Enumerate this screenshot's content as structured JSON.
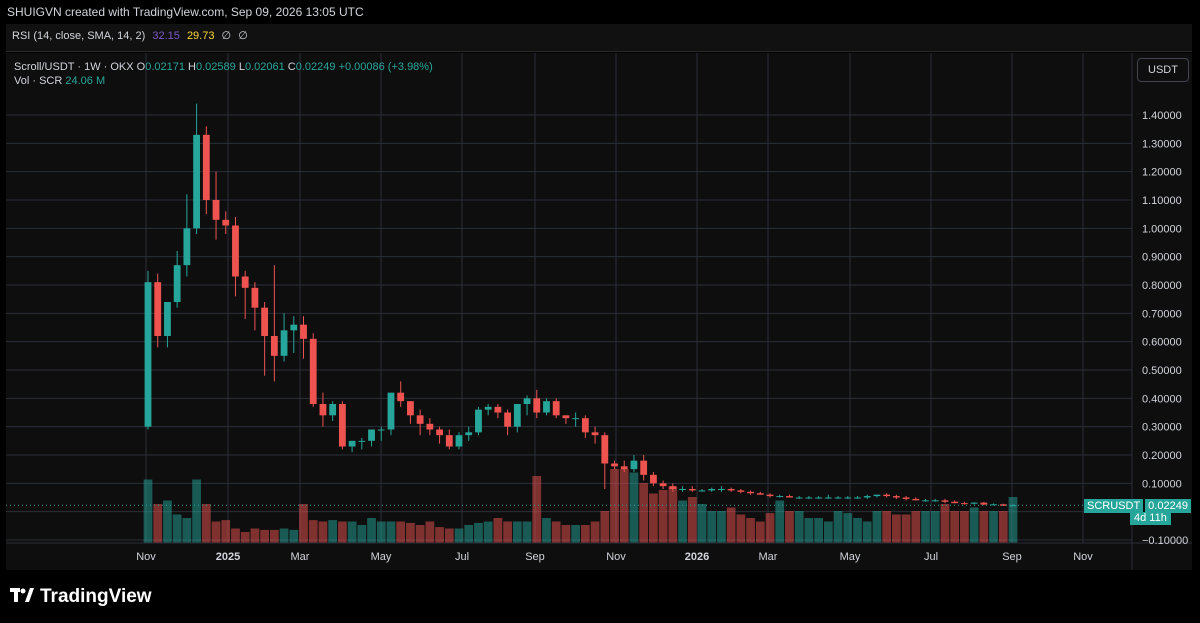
{
  "header": {
    "text": "SHUIGVN created with TradingView.com, Sep 09, 2026 13:05 UTC"
  },
  "rsi": {
    "label": "RSI (14, close, SMA, 14, 2)",
    "value1": "32.15",
    "value2": "29.73",
    "value3": "∅",
    "value4": "∅",
    "colors": {
      "value1": "#7e57c2",
      "value2": "#fdd835"
    }
  },
  "legend": {
    "symbol": "Scroll/USDT · 1W · OKX",
    "open_label": "O",
    "open": "0.02171",
    "high_label": "H",
    "high": "0.02589",
    "low_label": "L",
    "low": "0.02061",
    "close_label": "C",
    "close": "0.02249",
    "change": "+0.00086 (+3.98%)",
    "vol_label": "Vol · SCR",
    "vol_value": "24.06 M"
  },
  "currency_button": "USDT",
  "price_tag": {
    "symbol": "SCRUSDT",
    "value": "0.02249",
    "countdown": "4d 11h"
  },
  "watermark": "TradingView",
  "colors": {
    "up": "#26a69a",
    "down": "#ef5350",
    "background": "#0e0e0e",
    "grid": "#2a2e39"
  },
  "chart_data": {
    "type": "candlestick",
    "y_axis": {
      "range": [
        -0.1,
        1.4
      ],
      "ticks": [
        "1.40000",
        "1.30000",
        "1.20000",
        "1.10000",
        "1.00000",
        "0.90000",
        "0.80000",
        "0.70000",
        "0.60000",
        "0.50000",
        "0.40000",
        "0.30000",
        "0.20000",
        "0.10000",
        "−0.10000"
      ],
      "tick_values": [
        1.4,
        1.3,
        1.2,
        1.1,
        1.0,
        0.9,
        0.8,
        0.7,
        0.6,
        0.5,
        0.4,
        0.3,
        0.2,
        0.1,
        -0.1
      ]
    },
    "x_axis": {
      "tick_labels": [
        "Nov",
        "2025",
        "Mar",
        "May",
        "Jul",
        "Sep",
        "Nov",
        "2026",
        "Mar",
        "May",
        "Jul",
        "Sep",
        "Nov"
      ],
      "tick_bold": [
        false,
        true,
        false,
        false,
        false,
        false,
        false,
        true,
        false,
        false,
        false,
        false,
        false
      ]
    },
    "candles": [
      [
        0.3,
        0.85,
        0.29,
        0.81
      ],
      [
        0.81,
        0.84,
        0.58,
        0.62
      ],
      [
        0.62,
        0.74,
        0.58,
        0.74
      ],
      [
        0.74,
        0.92,
        0.72,
        0.87
      ],
      [
        0.87,
        1.12,
        0.83,
        1.0
      ],
      [
        1.0,
        1.44,
        0.98,
        1.33
      ],
      [
        1.33,
        1.36,
        1.05,
        1.1
      ],
      [
        1.1,
        1.2,
        0.96,
        1.03
      ],
      [
        1.03,
        1.06,
        0.98,
        1.01
      ],
      [
        1.01,
        1.04,
        0.76,
        0.83
      ],
      [
        0.83,
        0.85,
        0.68,
        0.79
      ],
      [
        0.79,
        0.81,
        0.64,
        0.72
      ],
      [
        0.72,
        0.74,
        0.48,
        0.62
      ],
      [
        0.62,
        0.87,
        0.46,
        0.55
      ],
      [
        0.55,
        0.7,
        0.53,
        0.64
      ],
      [
        0.64,
        0.69,
        0.56,
        0.66
      ],
      [
        0.66,
        0.69,
        0.54,
        0.61
      ],
      [
        0.61,
        0.63,
        0.37,
        0.38
      ],
      [
        0.38,
        0.42,
        0.3,
        0.34
      ],
      [
        0.34,
        0.39,
        0.32,
        0.38
      ],
      [
        0.38,
        0.39,
        0.22,
        0.23
      ],
      [
        0.23,
        0.25,
        0.21,
        0.25
      ],
      [
        0.25,
        0.26,
        0.22,
        0.25
      ],
      [
        0.25,
        0.29,
        0.23,
        0.29
      ],
      [
        0.29,
        0.3,
        0.25,
        0.29
      ],
      [
        0.29,
        0.42,
        0.27,
        0.42
      ],
      [
        0.42,
        0.46,
        0.37,
        0.39
      ],
      [
        0.39,
        0.39,
        0.31,
        0.34
      ],
      [
        0.34,
        0.36,
        0.27,
        0.31
      ],
      [
        0.31,
        0.33,
        0.27,
        0.29
      ],
      [
        0.29,
        0.3,
        0.24,
        0.27
      ],
      [
        0.27,
        0.29,
        0.22,
        0.23
      ],
      [
        0.23,
        0.28,
        0.22,
        0.27
      ],
      [
        0.27,
        0.3,
        0.25,
        0.28
      ],
      [
        0.28,
        0.37,
        0.27,
        0.36
      ],
      [
        0.36,
        0.38,
        0.34,
        0.37
      ],
      [
        0.37,
        0.38,
        0.33,
        0.35
      ],
      [
        0.35,
        0.36,
        0.27,
        0.3
      ],
      [
        0.3,
        0.38,
        0.28,
        0.38
      ],
      [
        0.38,
        0.41,
        0.34,
        0.4
      ],
      [
        0.4,
        0.43,
        0.33,
        0.35
      ],
      [
        0.35,
        0.4,
        0.34,
        0.39
      ],
      [
        0.39,
        0.4,
        0.33,
        0.34
      ],
      [
        0.34,
        0.34,
        0.31,
        0.33
      ],
      [
        0.33,
        0.35,
        0.3,
        0.33
      ],
      [
        0.33,
        0.34,
        0.26,
        0.28
      ],
      [
        0.28,
        0.3,
        0.24,
        0.27
      ],
      [
        0.27,
        0.28,
        0.08,
        0.17
      ],
      [
        0.17,
        0.18,
        0.15,
        0.16
      ],
      [
        0.16,
        0.18,
        0.14,
        0.15
      ],
      [
        0.15,
        0.2,
        0.14,
        0.18
      ],
      [
        0.18,
        0.2,
        0.11,
        0.13
      ],
      [
        0.13,
        0.14,
        0.09,
        0.1
      ],
      [
        0.1,
        0.11,
        0.08,
        0.09
      ],
      [
        0.09,
        0.1,
        0.07,
        0.08
      ],
      [
        0.08,
        0.09,
        0.07,
        0.08
      ],
      [
        0.08,
        0.09,
        0.07,
        0.075
      ],
      [
        0.075,
        0.08,
        0.07,
        0.075
      ],
      [
        0.075,
        0.085,
        0.07,
        0.08
      ],
      [
        0.08,
        0.09,
        0.07,
        0.08
      ],
      [
        0.08,
        0.085,
        0.07,
        0.075
      ],
      [
        0.075,
        0.08,
        0.065,
        0.07
      ],
      [
        0.07,
        0.075,
        0.06,
        0.065
      ],
      [
        0.065,
        0.07,
        0.06,
        0.06
      ],
      [
        0.06,
        0.065,
        0.05,
        0.055
      ],
      [
        0.055,
        0.06,
        0.05,
        0.055
      ],
      [
        0.055,
        0.06,
        0.05,
        0.05
      ],
      [
        0.05,
        0.055,
        0.045,
        0.05
      ],
      [
        0.05,
        0.055,
        0.045,
        0.05
      ],
      [
        0.05,
        0.055,
        0.045,
        0.05
      ],
      [
        0.05,
        0.06,
        0.045,
        0.05
      ],
      [
        0.05,
        0.055,
        0.045,
        0.05
      ],
      [
        0.05,
        0.055,
        0.045,
        0.05
      ],
      [
        0.05,
        0.055,
        0.045,
        0.05
      ],
      [
        0.05,
        0.06,
        0.045,
        0.055
      ],
      [
        0.055,
        0.06,
        0.05,
        0.06
      ],
      [
        0.06,
        0.065,
        0.05,
        0.055
      ],
      [
        0.055,
        0.06,
        0.045,
        0.05
      ],
      [
        0.05,
        0.055,
        0.04,
        0.045
      ],
      [
        0.045,
        0.05,
        0.04,
        0.04
      ],
      [
        0.04,
        0.045,
        0.035,
        0.04
      ],
      [
        0.04,
        0.045,
        0.035,
        0.04
      ],
      [
        0.04,
        0.045,
        0.03,
        0.035
      ],
      [
        0.035,
        0.04,
        0.03,
        0.03
      ],
      [
        0.03,
        0.035,
        0.025,
        0.028
      ],
      [
        0.028,
        0.033,
        0.025,
        0.032
      ],
      [
        0.032,
        0.034,
        0.023,
        0.025
      ],
      [
        0.025,
        0.029,
        0.022,
        0.026
      ],
      [
        0.026,
        0.028,
        0.02,
        0.021
      ],
      [
        0.02171,
        0.02589,
        0.02061,
        0.02249
      ]
    ],
    "volume": [
      0.9,
      0.55,
      0.6,
      0.4,
      0.35,
      0.9,
      0.55,
      0.3,
      0.32,
      0.2,
      0.15,
      0.2,
      0.18,
      0.18,
      0.2,
      0.18,
      0.55,
      0.32,
      0.3,
      0.32,
      0.3,
      0.3,
      0.25,
      0.35,
      0.3,
      0.3,
      0.3,
      0.28,
      0.25,
      0.3,
      0.22,
      0.2,
      0.2,
      0.25,
      0.28,
      0.3,
      0.35,
      0.3,
      0.3,
      0.3,
      0.95,
      0.35,
      0.3,
      0.25,
      0.25,
      0.25,
      0.3,
      0.45,
      1.05,
      1.05,
      1.0,
      0.85,
      0.7,
      0.75,
      0.8,
      0.6,
      0.65,
      0.55,
      0.45,
      0.45,
      0.5,
      0.4,
      0.35,
      0.3,
      0.42,
      0.6,
      0.45,
      0.45,
      0.35,
      0.35,
      0.3,
      0.45,
      0.42,
      0.35,
      0.3,
      0.45,
      0.45,
      0.4,
      0.4,
      0.45,
      0.45,
      0.45,
      0.55,
      0.45,
      0.45,
      0.5,
      0.45,
      0.45,
      0.45,
      0.65
    ],
    "last_price": 0.02249
  }
}
